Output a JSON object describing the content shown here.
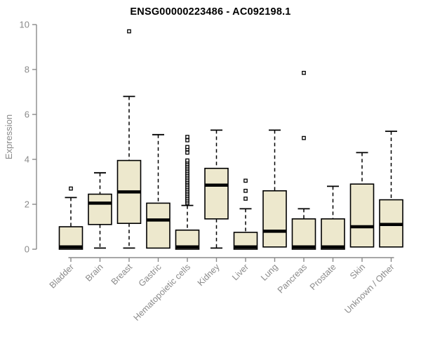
{
  "chart_data": {
    "type": "boxplot",
    "title": "ENSG00000223486 - AC092198.1",
    "xlabel": "",
    "ylabel": "Expression",
    "ylim": [
      0,
      10
    ],
    "yticks": [
      0,
      2,
      4,
      6,
      8,
      10
    ],
    "grid": false,
    "legend": "none",
    "colors": {
      "box_fill": "#EDE8CD",
      "box_stroke": "#000000",
      "median": "#000000",
      "whisker": "#000000",
      "outlier_fill": "#ffffff",
      "outlier_stroke": "#000000",
      "axis": "#8a8a8a",
      "tick_label": "#8a8a8a",
      "title": "#000000"
    },
    "categories": [
      "Bladder",
      "Brain",
      "Breast",
      "Gastric",
      "Hematopoietic cells",
      "Kidney",
      "Liver",
      "Lung",
      "Pancreas",
      "Prostate",
      "Skin",
      "Unknown / Other"
    ],
    "series": [
      {
        "category": "Bladder",
        "whisker_low": 0,
        "q1": 0,
        "median": 0.1,
        "q3": 1.0,
        "whisker_high": 2.3,
        "outliers": [
          2.7
        ]
      },
      {
        "category": "Brain",
        "whisker_low": 0.05,
        "q1": 1.1,
        "median": 2.05,
        "q3": 2.45,
        "whisker_high": 3.4,
        "outliers": []
      },
      {
        "category": "Breast",
        "whisker_low": 0.05,
        "q1": 1.15,
        "median": 2.55,
        "q3": 3.95,
        "whisker_high": 6.8,
        "outliers": [
          9.7
        ]
      },
      {
        "category": "Gastric",
        "whisker_low": 0.05,
        "q1": 0.05,
        "median": 1.3,
        "q3": 2.05,
        "whisker_high": 5.1,
        "outliers": []
      },
      {
        "category": "Hematopoietic cells",
        "whisker_low": 0,
        "q1": 0,
        "median": 0.1,
        "q3": 0.85,
        "whisker_high": 1.95,
        "outliers": [
          2.05,
          2.13,
          2.21,
          2.29,
          2.37,
          2.45,
          2.53,
          2.61,
          2.69,
          2.77,
          2.85,
          2.93,
          3.0,
          3.08,
          3.16,
          3.24,
          3.32,
          3.4,
          3.48,
          3.56,
          3.64,
          3.72,
          3.8,
          3.88,
          3.95,
          4.3,
          4.45,
          4.55,
          4.85,
          5.0
        ]
      },
      {
        "category": "Kidney",
        "whisker_low": 0.05,
        "q1": 1.35,
        "median": 2.85,
        "q3": 3.6,
        "whisker_high": 5.3,
        "outliers": []
      },
      {
        "category": "Liver",
        "whisker_low": 0,
        "q1": 0,
        "median": 0.1,
        "q3": 0.75,
        "whisker_high": 1.8,
        "outliers": [
          2.25,
          2.6,
          3.05
        ]
      },
      {
        "category": "Lung",
        "whisker_low": 0.1,
        "q1": 0.1,
        "median": 0.8,
        "q3": 2.6,
        "whisker_high": 5.3,
        "outliers": []
      },
      {
        "category": "Pancreas",
        "whisker_low": 0,
        "q1": 0,
        "median": 0.1,
        "q3": 1.35,
        "whisker_high": 1.8,
        "outliers": [
          4.95,
          7.85
        ]
      },
      {
        "category": "Prostate",
        "whisker_low": 0,
        "q1": 0,
        "median": 0.1,
        "q3": 1.35,
        "whisker_high": 2.8,
        "outliers": []
      },
      {
        "category": "Skin",
        "whisker_low": 0.1,
        "q1": 0.1,
        "median": 1.0,
        "q3": 2.9,
        "whisker_high": 4.3,
        "outliers": []
      },
      {
        "category": "Unknown / Other",
        "whisker_low": 0.1,
        "q1": 0.1,
        "median": 1.1,
        "q3": 2.2,
        "whisker_high": 5.25,
        "outliers": []
      }
    ]
  }
}
